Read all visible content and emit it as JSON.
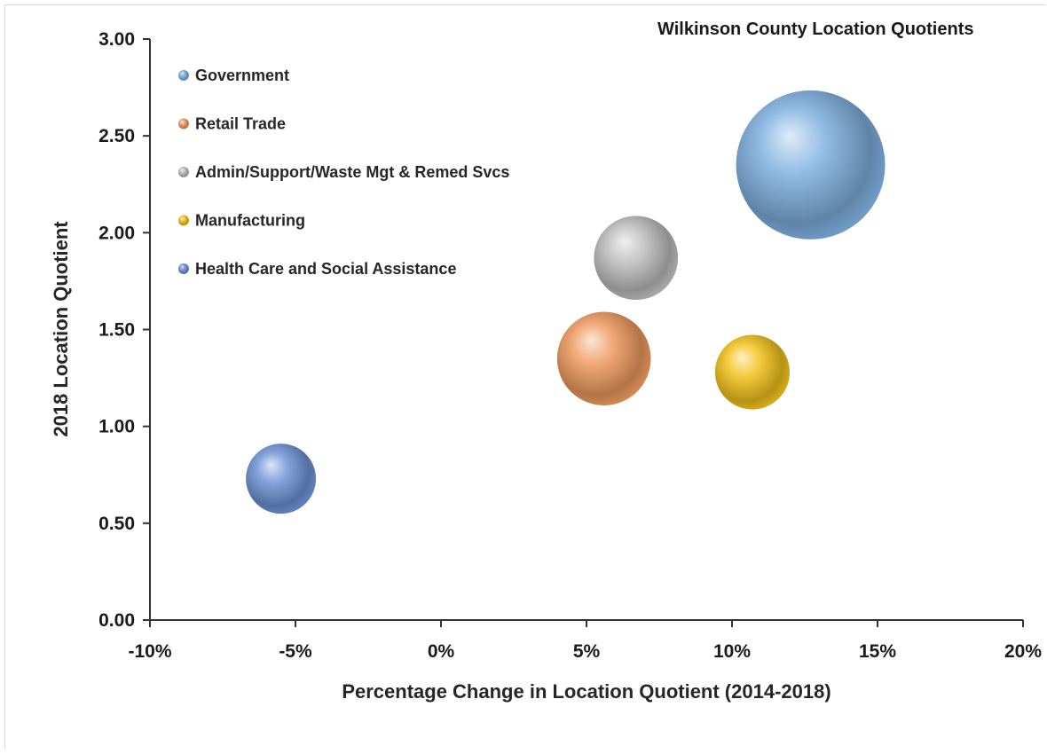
{
  "chart_data": {
    "type": "bubble",
    "title": "Wilkinson County Location Quotients",
    "xlabel": "Percentage Change in Location Quotient (2014-2018)",
    "ylabel": "2018 Location Quotient",
    "xlim": [
      -0.1,
      0.2
    ],
    "ylim": [
      0.0,
      3.0
    ],
    "x_ticks": [
      -0.1,
      -0.05,
      0.0,
      0.05,
      0.1,
      0.15,
      0.2
    ],
    "x_tick_labels": [
      "-10%",
      "-5%",
      "0%",
      "5%",
      "10%",
      "15%",
      "20%"
    ],
    "y_ticks": [
      0.0,
      0.5,
      1.0,
      1.5,
      2.0,
      2.5,
      3.0
    ],
    "y_tick_labels": [
      "0.00",
      "0.50",
      "1.00",
      "1.50",
      "2.00",
      "2.50",
      "3.00"
    ],
    "grid": false,
    "legend_position": "top-left",
    "series": [
      {
        "name": "Government",
        "x": 0.127,
        "y": 2.35,
        "size": 1.0,
        "color": "#7fb0e0"
      },
      {
        "name": "Retail Trade",
        "x": 0.056,
        "y": 1.35,
        "size": 0.395,
        "color": "#ee9a5f"
      },
      {
        "name": "Admin/Support/Waste Mgt & Remed Svcs",
        "x": 0.067,
        "y": 1.87,
        "size": 0.318,
        "color": "#bdbdbd"
      },
      {
        "name": "Manufacturing",
        "x": 0.107,
        "y": 1.28,
        "size": 0.251,
        "color": "#f2c21b"
      },
      {
        "name": "Health Care and Social Assistance",
        "x": -0.055,
        "y": 0.73,
        "size": 0.221,
        "color": "#6f93d6"
      }
    ]
  }
}
